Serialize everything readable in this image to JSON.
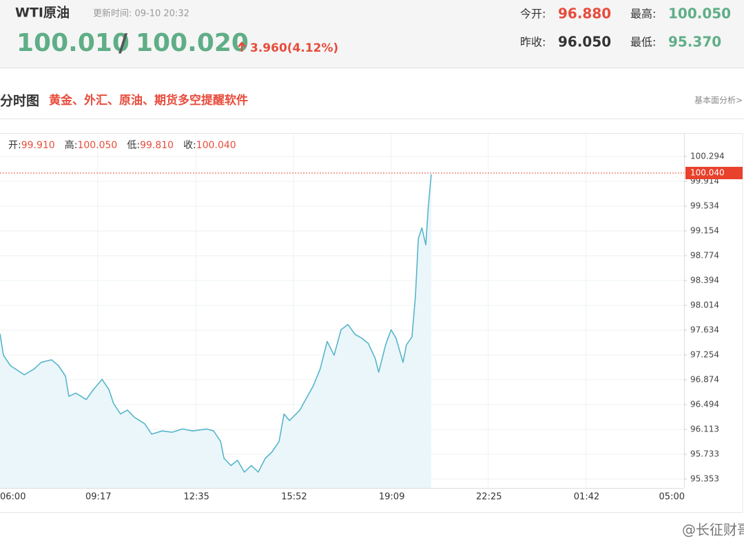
{
  "header": {
    "title": "WTI原油",
    "update_time": "更新时间: 09-10 20:32",
    "bid": "100.010",
    "separator": "/",
    "ask": "100.020",
    "change": "3.960(4.12%)",
    "stats": [
      {
        "label": "今开:",
        "value": "96.880"
      },
      {
        "label": "最高:",
        "value": "100.050"
      },
      {
        "label": "昨收:",
        "value": "96.050"
      },
      {
        "label": "最低:",
        "value": "95.370"
      }
    ]
  },
  "section": {
    "title": "分时图",
    "promo": "黄金、外汇、原油、期货多空提醒软件",
    "link": "基本面分析>"
  },
  "chart_data": {
    "type": "line",
    "ohlc": [
      {
        "label": "开:",
        "value": "99.910"
      },
      {
        "label": "高:",
        "value": "100.050"
      },
      {
        "label": "低:",
        "value": "99.810"
      },
      {
        "label": "收:",
        "value": "100.040"
      }
    ],
    "x": [
      0,
      7,
      21,
      49,
      69,
      83,
      104,
      118,
      132,
      139,
      153,
      174,
      188,
      206,
      220,
      229,
      243,
      257,
      271,
      292,
      306,
      327,
      347,
      368,
      389,
      417,
      431,
      445,
      452,
      466,
      479,
      493,
      507,
      521,
      535,
      549,
      563,
      573,
      584,
      605,
      618,
      632,
      646,
      660,
      674,
      688,
      702,
      716,
      730,
      743,
      757,
      764,
      778,
      789,
      799,
      813,
      820,
      831,
      838,
      844,
      851,
      859,
      864,
      870
    ],
    "values": [
      97.58,
      97.25,
      97.09,
      96.95,
      97.04,
      97.14,
      97.18,
      97.09,
      96.93,
      96.62,
      96.67,
      96.57,
      96.72,
      96.88,
      96.72,
      96.51,
      96.35,
      96.41,
      96.3,
      96.2,
      96.04,
      96.09,
      96.07,
      96.12,
      96.09,
      96.12,
      96.09,
      95.93,
      95.67,
      95.56,
      95.64,
      95.46,
      95.56,
      95.46,
      95.67,
      95.77,
      95.93,
      96.35,
      96.25,
      96.41,
      96.59,
      96.78,
      97.04,
      97.46,
      97.25,
      97.64,
      97.72,
      97.57,
      97.51,
      97.43,
      97.2,
      96.99,
      97.41,
      97.64,
      97.51,
      97.14,
      97.41,
      97.53,
      98.15,
      99.04,
      99.2,
      98.94,
      99.52,
      100.02
    ],
    "color": "#56b5c9",
    "xlim": [
      0,
      1380
    ],
    "xticks": [
      {
        "value": 0,
        "label": "06:00"
      },
      {
        "value": 197,
        "label": "09:17"
      },
      {
        "value": 395,
        "label": "12:35"
      },
      {
        "value": 592,
        "label": "15:52"
      },
      {
        "value": 789,
        "label": "19:09"
      },
      {
        "value": 985,
        "label": "22:25"
      },
      {
        "value": 1182,
        "label": "01:42"
      },
      {
        "value": 1380,
        "label": "05:00"
      }
    ],
    "ylim": [
      95.216,
      100.642
    ],
    "yticks": [
      100.294,
      99.914,
      99.534,
      99.154,
      98.774,
      98.394,
      98.014,
      97.634,
      97.254,
      96.874,
      96.494,
      96.113,
      95.733,
      95.353
    ],
    "reference_line": {
      "value": 100.04,
      "label": "100.040"
    },
    "grid": true
  },
  "watermark": "@长征财哥"
}
